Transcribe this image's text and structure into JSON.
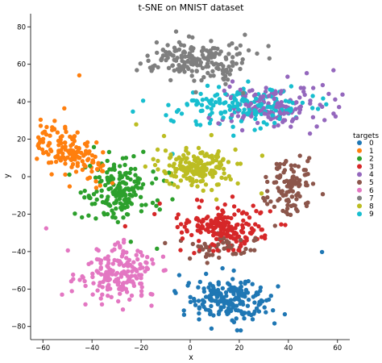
{
  "chart_data": {
    "type": "scatter",
    "title": "t-SNE on MNIST dataset",
    "xlabel": "x",
    "ylabel": "y",
    "xlim": [
      -65,
      65
    ],
    "ylim": [
      -87,
      87
    ],
    "xticks": [
      -60,
      -40,
      -20,
      0,
      20,
      40,
      60
    ],
    "yticks": [
      -80,
      -60,
      -40,
      -20,
      0,
      20,
      40,
      60,
      80
    ],
    "grid": false,
    "legend": {
      "title": "targets",
      "placement": "right"
    },
    "series": [
      {
        "name": "0",
        "color": "#1f77b4",
        "clusters": [
          {
            "cx": 15,
            "cy": -66,
            "sx": 8,
            "sy": 5.5,
            "n": 190
          }
        ]
      },
      {
        "name": "1",
        "color": "#ff7f0e",
        "clusters": [
          {
            "cx": -50,
            "cy": 14,
            "sx": 4.5,
            "sy": 10,
            "rot": 0.8,
            "n": 150
          }
        ]
      },
      {
        "name": "2",
        "color": "#2ca02c",
        "clusters": [
          {
            "cx": -28,
            "cy": -8,
            "sx": 7,
            "sy": 7.5,
            "n": 170
          }
        ]
      },
      {
        "name": "3",
        "color": "#d62728",
        "clusters": [
          {
            "cx": 14,
            "cy": -27,
            "sx": 10,
            "sy": 6,
            "n": 180
          }
        ]
      },
      {
        "name": "4",
        "color": "#9467bd",
        "clusters": [
          {
            "cx": 35,
            "cy": 38,
            "sx": 12,
            "sy": 6,
            "n": 150
          }
        ]
      },
      {
        "name": "5",
        "color": "#8c564b",
        "clusters": [
          {
            "cx": 40,
            "cy": -5,
            "sx": 4.5,
            "sy": 8,
            "n": 100
          },
          {
            "cx": 14,
            "cy": -38,
            "sx": 7,
            "sy": 3,
            "n": 50
          }
        ]
      },
      {
        "name": "6",
        "color": "#e377c2",
        "clusters": [
          {
            "cx": -29,
            "cy": -52,
            "sx": 7,
            "sy": 7,
            "n": 170
          }
        ]
      },
      {
        "name": "7",
        "color": "#7f7f7f",
        "clusters": [
          {
            "cx": 2,
            "cy": 63,
            "sx": 10,
            "sy": 5.5,
            "n": 180
          }
        ]
      },
      {
        "name": "8",
        "color": "#bcbd22",
        "clusters": [
          {
            "cx": 3,
            "cy": 5,
            "sx": 8,
            "sy": 5,
            "n": 170
          }
        ]
      },
      {
        "name": "9",
        "color": "#17becf",
        "clusters": [
          {
            "cx": 20,
            "cy": 38,
            "sx": 14,
            "sy": 5,
            "n": 170
          }
        ]
      }
    ]
  }
}
